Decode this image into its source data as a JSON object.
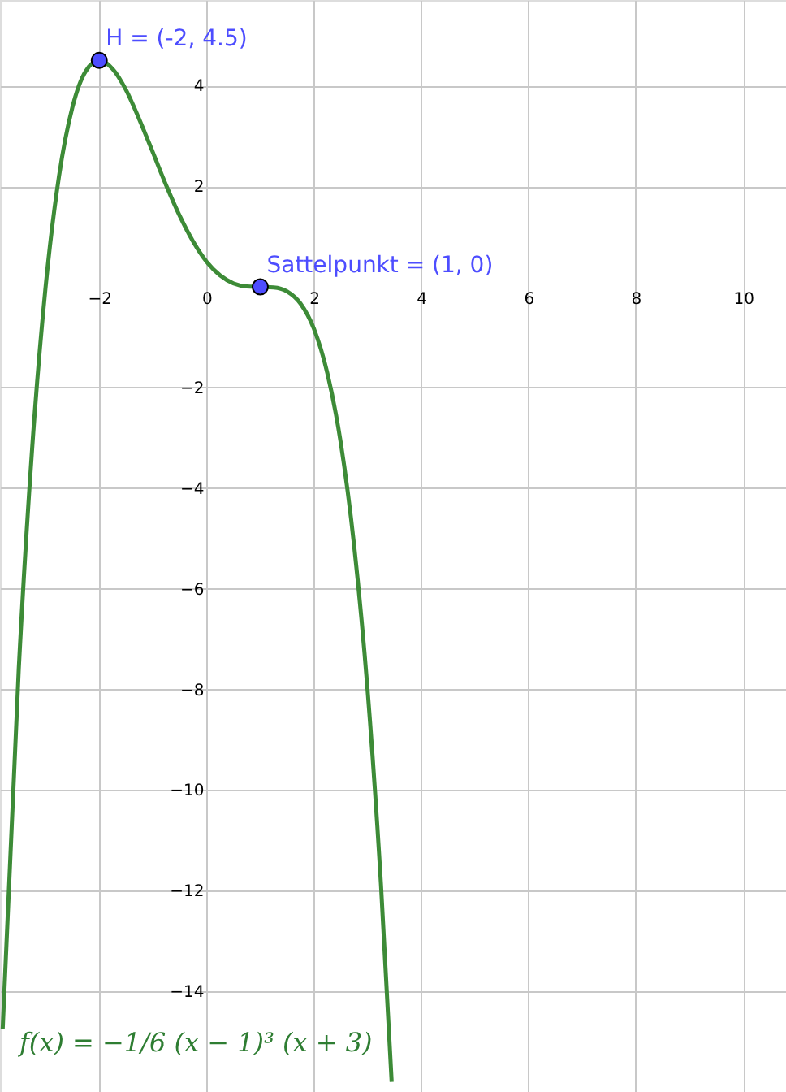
{
  "chart_data": {
    "type": "line",
    "xlim": [
      -3.85,
      10.8
    ],
    "ylim": [
      -16,
      5.7
    ],
    "xticks": [
      -2,
      0,
      2,
      4,
      6,
      8,
      10
    ],
    "yticks": [
      -14,
      -12,
      -10,
      -8,
      -6,
      -4,
      -2,
      2,
      4
    ],
    "grid": true,
    "series": [
      {
        "color": "#3d8b37",
        "marker": "none",
        "line_style": "solid",
        "x": [
          -3.8,
          -3.5,
          -3.25,
          -3,
          -2.75,
          -2.5,
          -2.25,
          -2,
          -1.75,
          -1.5,
          -1.25,
          -1,
          -0.75,
          -0.5,
          -0.25,
          0,
          0.25,
          0.5,
          0.75,
          1,
          1.25,
          1.5,
          1.75,
          2,
          2.25,
          2.5,
          2.75,
          3,
          3.25,
          3.45
        ],
        "values": [
          -14.75,
          -7.59,
          -3.2,
          0,
          2.2,
          3.57,
          4.29,
          4.5,
          4.33,
          3.91,
          3.32,
          2.67,
          2.01,
          1.41,
          0.9,
          0.5,
          0.23,
          0.07,
          0.01,
          0,
          -0.01,
          -0.09,
          -0.33,
          -0.83,
          -1.71,
          -3.09,
          -5.14,
          -8,
          -11.87,
          -15.8
        ]
      },
      {
        "type": "scatter",
        "color": "#4d4dff",
        "marker": "circle",
        "x": [
          -2,
          1
        ],
        "values": [
          4.5,
          0
        ]
      }
    ],
    "annotations": [
      {
        "text": "H = (-2, 4.5)",
        "x": -2,
        "y": 4.5
      },
      {
        "text": "Sattelpunkt = (1, 0)",
        "x": 1,
        "y": 0
      },
      "f(x) = −1/6 (x − 1)³ (x + 3)"
    ]
  }
}
